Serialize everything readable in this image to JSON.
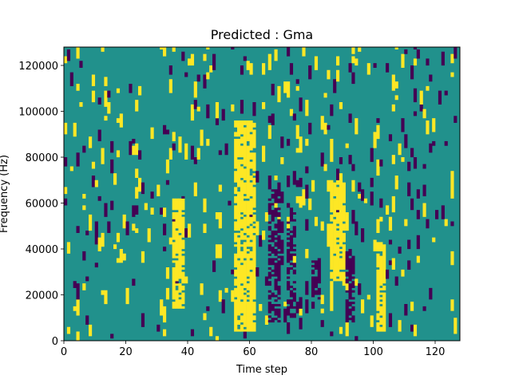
{
  "chart_data": {
    "type": "heatmap",
    "title": "Predicted : Gma",
    "xlabel": "Time step",
    "ylabel": "Frequency (Hz)",
    "xlim": [
      0,
      128
    ],
    "ylim": [
      0,
      128000
    ],
    "xticks": [
      0,
      20,
      40,
      60,
      80,
      100,
      120
    ],
    "yticks": [
      0,
      20000,
      40000,
      60000,
      80000,
      100000,
      120000
    ],
    "n_time_steps": 128,
    "n_freq_bins": 128,
    "background_level": "middle",
    "colors": {
      "low": "#440154",
      "middle": "#21918c",
      "high": "#fde725"
    },
    "high_bands": [
      {
        "x": [
          55,
          61
        ],
        "y": [
          4000,
          96000
        ]
      },
      {
        "x": [
          86,
          90
        ],
        "y": [
          26000,
          70000
        ]
      },
      {
        "x": [
          35,
          38
        ],
        "y": [
          14000,
          62000
        ]
      },
      {
        "x": [
          101,
          103
        ],
        "y": [
          4000,
          42000
        ]
      }
    ],
    "low_bands": [
      {
        "x": [
          66,
          69
        ],
        "y": [
          8000,
          66000
        ]
      },
      {
        "x": [
          72,
          74
        ],
        "y": [
          10000,
          56000
        ]
      },
      {
        "x": [
          80,
          82
        ],
        "y": [
          18000,
          36000
        ]
      },
      {
        "x": [
          91,
          93
        ],
        "y": [
          8000,
          40000
        ]
      }
    ],
    "cell_density": {
      "high": 0.06,
      "low": 0.045
    }
  }
}
